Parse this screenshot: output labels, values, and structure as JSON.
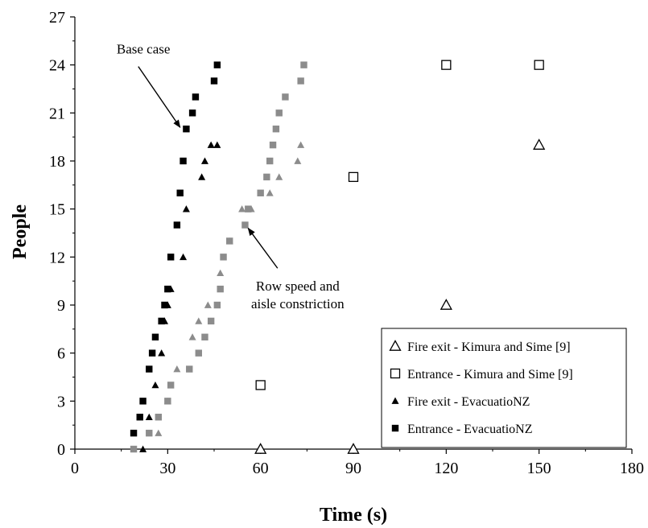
{
  "chart_data": {
    "type": "scatter",
    "xlabel": "Time (s)",
    "ylabel": "People",
    "xlim": [
      0,
      180
    ],
    "ylim": [
      0,
      27
    ],
    "xticks": [
      0,
      30,
      60,
      90,
      120,
      150,
      180
    ],
    "yticks": [
      0,
      3,
      6,
      9,
      12,
      15,
      18,
      21,
      24,
      27
    ],
    "grid": false,
    "legend_position": "bottom-right",
    "colors": {
      "black": "#000000",
      "grey": "#8c8c8c"
    },
    "series": [
      {
        "name": "Fire exit - Kimura and Sime [9]",
        "marker": "open-triangle",
        "points": [
          [
            60,
            0
          ],
          [
            90,
            0
          ],
          [
            120,
            9
          ],
          [
            150,
            19
          ]
        ]
      },
      {
        "name": "Entrance - Kimura and Sime [9]",
        "marker": "open-square",
        "points": [
          [
            60,
            4
          ],
          [
            90,
            17
          ],
          [
            120,
            24
          ],
          [
            150,
            24
          ]
        ]
      },
      {
        "name": "Fire exit - EvacuatioNZ",
        "marker": "filled-triangle",
        "color": "black",
        "points": [
          [
            22,
            0
          ],
          [
            24,
            2
          ],
          [
            26,
            4
          ],
          [
            28,
            6
          ],
          [
            29,
            8
          ],
          [
            30,
            9
          ],
          [
            31,
            10
          ],
          [
            35,
            12
          ],
          [
            36,
            15
          ],
          [
            41,
            17
          ],
          [
            42,
            18
          ],
          [
            44,
            19
          ],
          [
            46,
            19
          ]
        ]
      },
      {
        "name": "Entrance - EvacuatioNZ",
        "marker": "filled-square",
        "color": "black",
        "points": [
          [
            19,
            1
          ],
          [
            21,
            2
          ],
          [
            22,
            3
          ],
          [
            24,
            5
          ],
          [
            25,
            6
          ],
          [
            26,
            7
          ],
          [
            28,
            8
          ],
          [
            29,
            9
          ],
          [
            30,
            10
          ],
          [
            31,
            12
          ],
          [
            33,
            14
          ],
          [
            34,
            16
          ],
          [
            35,
            18
          ],
          [
            36,
            20
          ],
          [
            38,
            21
          ],
          [
            39,
            22
          ],
          [
            45,
            23
          ],
          [
            46,
            24
          ]
        ]
      },
      {
        "name": "",
        "marker": "filled-triangle",
        "color": "grey",
        "points": [
          [
            27,
            1
          ],
          [
            30,
            3
          ],
          [
            33,
            5
          ],
          [
            38,
            7
          ],
          [
            40,
            8
          ],
          [
            43,
            9
          ],
          [
            47,
            11
          ],
          [
            50,
            13
          ],
          [
            54,
            15
          ],
          [
            57,
            15
          ],
          [
            63,
            16
          ],
          [
            66,
            17
          ],
          [
            72,
            18
          ],
          [
            73,
            19
          ]
        ]
      },
      {
        "name": "",
        "marker": "filled-square",
        "color": "grey",
        "points": [
          [
            19,
            0
          ],
          [
            24,
            1
          ],
          [
            27,
            2
          ],
          [
            30,
            3
          ],
          [
            31,
            4
          ],
          [
            37,
            5
          ],
          [
            40,
            6
          ],
          [
            42,
            7
          ],
          [
            44,
            8
          ],
          [
            46,
            9
          ],
          [
            47,
            10
          ],
          [
            48,
            12
          ],
          [
            50,
            13
          ],
          [
            55,
            14
          ],
          [
            56,
            15
          ],
          [
            60,
            16
          ],
          [
            62,
            17
          ],
          [
            63,
            18
          ],
          [
            64,
            19
          ],
          [
            65,
            20
          ],
          [
            66,
            21
          ],
          [
            68,
            22
          ],
          [
            73,
            23
          ],
          [
            74,
            24
          ]
        ]
      }
    ],
    "annotations": [
      {
        "id": "base-case",
        "text_lines": [
          "Base case"
        ],
        "text_at": [
          13.5,
          24.7
        ],
        "arrow_from": [
          20.5,
          23.9
        ],
        "arrow_to": [
          34,
          20.1
        ]
      },
      {
        "id": "row-speed",
        "text_lines": [
          "Row speed and",
          "aisle constriction"
        ],
        "text_at": [
          72,
          9.9
        ],
        "arrow_from": [
          65.5,
          11.3
        ],
        "arrow_to": [
          56,
          13.8
        ]
      }
    ]
  }
}
